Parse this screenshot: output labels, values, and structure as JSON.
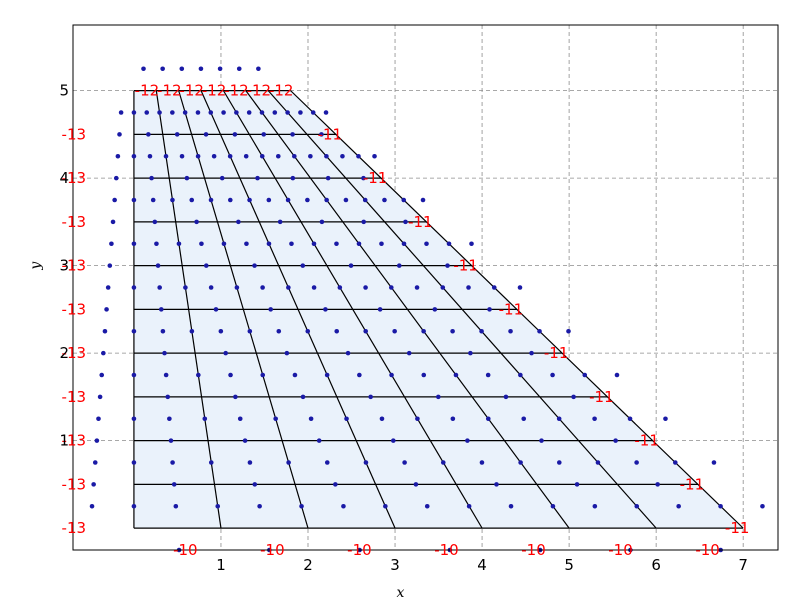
{
  "chart_data": {
    "type": "scatter",
    "title": "",
    "xlabel": "x",
    "ylabel": "y",
    "xlim": [
      -0.7,
      7.4
    ],
    "ylim": [
      -0.25,
      5.75
    ],
    "x_ticks": [
      "1",
      "2",
      "3",
      "4",
      "5",
      "6",
      "7"
    ],
    "x_tick_values": [
      1,
      2,
      3,
      4,
      5,
      6,
      7
    ],
    "y_ticks": [
      "1",
      "2",
      "3",
      "4",
      "5"
    ],
    "y_tick_values": [
      1,
      2,
      3,
      4,
      5
    ],
    "grid": true,
    "grid_style": "dashed",
    "mesh": {
      "description_source": "trapezoidal mesh, bottom edge y=0 from x=0 to x=7, top edge y=5 from x=0 to x=1.8",
      "bottom_width": 7,
      "top_width": 1.8,
      "height": 5,
      "columns": 7,
      "rows": 10,
      "line_color": "#000000",
      "fill_color": "#eaf2fb"
    },
    "points": {
      "color": "#1a1aa6",
      "description_source": "cell centers, edge midpoints and ghost points of the mesh"
    },
    "boundary_labels": {
      "color": "#ff0000",
      "bottom": "-10",
      "right": "-11",
      "top": "-12",
      "left": "-13"
    },
    "colors": {
      "frame": "#000000",
      "grid": "#8c8c8c",
      "mesh_fill": "#eaf2fb",
      "point": "#1a1aa6",
      "boundary_text": "#ff0000"
    }
  }
}
